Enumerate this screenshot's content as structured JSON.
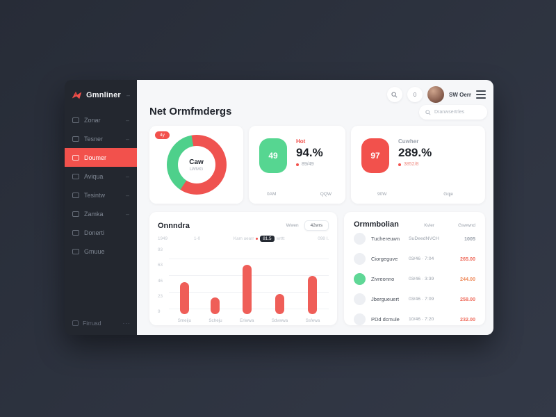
{
  "colors": {
    "background": "#2c313c",
    "sidebar": "#23272f",
    "accent_red": "#f2514c",
    "accent_green": "#56d691",
    "bar_red": "#ef5e58",
    "main_bg": "#f6f7f9",
    "text_dark": "#20242c",
    "text_gray": "#9aa1ab"
  },
  "sidebar": {
    "logo": {
      "icon": "ribbon-logo-icon",
      "text": "Gmnliner",
      "collapse": "–"
    },
    "items": [
      {
        "label": "Zonar",
        "icon": "grid",
        "chevron": "–",
        "active": false
      },
      {
        "label": "Tesner",
        "icon": "square",
        "chevron": "–",
        "active": false
      },
      {
        "label": "Doumer",
        "icon": "document",
        "chevron": "",
        "active": true
      },
      {
        "label": "Aviqua",
        "icon": "clock",
        "chevron": "–",
        "active": false
      },
      {
        "label": "Tesintw",
        "icon": "wallet",
        "chevron": "–",
        "active": false
      },
      {
        "label": "Zamka",
        "icon": "chart",
        "chevron": "–",
        "active": false
      },
      {
        "label": "Donerti",
        "icon": "send",
        "chevron": "",
        "active": false
      },
      {
        "label": "Gmuue",
        "icon": "pin",
        "chevron": "",
        "active": false
      }
    ],
    "footer": {
      "label": "Firrusd",
      "dots": "···"
    }
  },
  "header": {
    "title": "Net Ormfmdergs",
    "notifications": "0",
    "user_name": "SW Oerr",
    "search_text": "Dranwsertrles"
  },
  "stats": {
    "donut_card": {
      "badge": "4y",
      "center_title": "Caw",
      "center_sub": "LWMG"
    },
    "card2": {
      "tile": "49",
      "tile_color": "#56d691",
      "label": "Hot",
      "label_color": "#f2514c",
      "value": "94.%",
      "delta": "89/49",
      "delta_color": "#9aa1ab",
      "foot_left": "0AM",
      "foot_right": "QQW"
    },
    "card3": {
      "tile": "97",
      "tile_color": "#f2514c",
      "label": "Cuwher",
      "label_color": "#9aa1ab",
      "value": "289.%",
      "delta": "3852/8",
      "delta_color": "#ef8a80",
      "foot_left": "90W",
      "foot_right": "Gqje"
    }
  },
  "chart_card": {
    "title": "Onnndra",
    "action_text": "Wwen",
    "action_pill": "42wrs",
    "legend": {
      "tick1": "1949",
      "tick2": "1-0",
      "label": "Kam uearr",
      "pill": "81.5",
      "after": "wrttt",
      "right": "098 I."
    }
  },
  "table_card": {
    "title": "Ormmbolian",
    "col1": "Kvier",
    "col2": "Gswwnd",
    "rows": [
      {
        "name": "Tuchereuwn",
        "time": "SuDeedNVCH",
        "amount": "1005",
        "amount_color": "#9aa1ab",
        "icon_bg": "#edeff3"
      },
      {
        "name": "Ciorgeguve",
        "time": "03/46 · 7:04",
        "amount": "265.00",
        "amount_color": "#ef6a5a",
        "icon_bg": "#edeff3"
      },
      {
        "name": "Zivreonno",
        "time": "03/46 · 3:39",
        "amount": "244.00",
        "amount_color": "#ef8a5a",
        "icon_bg": "#5fd796"
      },
      {
        "name": "Jbergueuert",
        "time": "03/46 · 7:09",
        "amount": "258.00",
        "amount_color": "#ef6a5a",
        "icon_bg": "#edeff3"
      },
      {
        "name": "PDd dcmule",
        "time": "10/46 · 7:20",
        "amount": "232.00",
        "amount_color": "#ef6a5a",
        "icon_bg": "#edeff3"
      }
    ]
  },
  "chart_data": [
    {
      "type": "pie",
      "donut": true,
      "title": "Caw",
      "labels": [
        "red-segment",
        "green-segment"
      ],
      "values": [
        62,
        38
      ],
      "colors": [
        "#ef5350",
        "#4ed08b"
      ],
      "start_angle_deg": -10,
      "center_label": "Caw",
      "center_sublabel": "LWMG"
    },
    {
      "type": "bar",
      "title": "Onnndra",
      "categories": [
        "Smeiju",
        "Scheju",
        "Eriwwa",
        "Sdvwwa",
        "Ssfewa"
      ],
      "values": [
        50,
        26,
        77,
        32,
        60
      ],
      "ylim": [
        0,
        100
      ],
      "ytick_labels": [
        "93",
        "63",
        "46",
        "23",
        "9"
      ],
      "bar_color": "#ef5e58",
      "grid": true,
      "legend_position": "top"
    }
  ]
}
